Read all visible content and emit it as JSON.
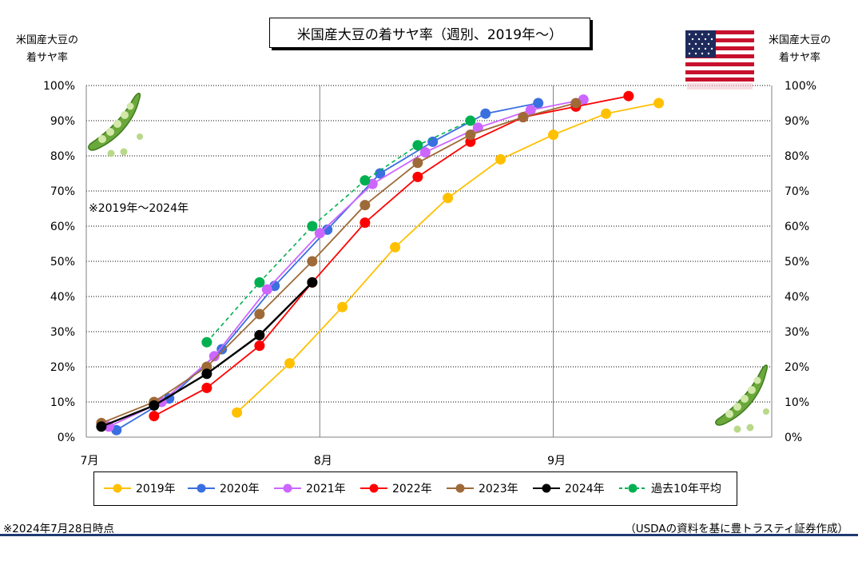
{
  "chart_data": {
    "type": "line",
    "title": "米国産大豆の着サヤ率（週別、2019年～）",
    "ylabel_left": "米国産大豆の\n着サヤ率",
    "ylabel_right": "米国産大豆の\n着サヤ率",
    "annotation": "※2019年～2024年",
    "x_ticks": [
      "7月",
      "8月",
      "9月"
    ],
    "x_range": [
      "2024-07-01",
      "2024-09-30"
    ],
    "ylim": [
      0,
      100
    ],
    "y_ticks": [
      "0%",
      "10%",
      "20%",
      "30%",
      "40%",
      "50%",
      "60%",
      "70%",
      "80%",
      "90%",
      "100%"
    ],
    "grid": true,
    "legend_position": "bottom",
    "series": [
      {
        "name": "2019年",
        "color": "#ffc000",
        "dashed": false,
        "x": [
          "2024-07-21",
          "2024-07-28",
          "2024-08-04",
          "2024-08-11",
          "2024-08-18",
          "2024-08-25",
          "2024-09-01",
          "2024-09-08",
          "2024-09-15"
        ],
        "y": [
          7,
          21,
          37,
          54,
          68,
          79,
          86,
          92,
          95
        ]
      },
      {
        "name": "2020年",
        "color": "#3a6fe0",
        "dashed": false,
        "x": [
          "2024-07-05",
          "2024-07-12",
          "2024-07-19",
          "2024-07-26",
          "2024-08-02",
          "2024-08-09",
          "2024-08-16",
          "2024-08-23",
          "2024-08-30"
        ],
        "y": [
          2,
          11,
          25,
          43,
          59,
          75,
          84,
          92,
          95
        ]
      },
      {
        "name": "2021年",
        "color": "#cc66ff",
        "dashed": false,
        "x": [
          "2024-07-04",
          "2024-07-11",
          "2024-07-18",
          "2024-07-25",
          "2024-08-01",
          "2024-08-08",
          "2024-08-15",
          "2024-08-22",
          "2024-08-29",
          "2024-09-05"
        ],
        "y": [
          3,
          10,
          23,
          42,
          58,
          72,
          81,
          88,
          93,
          96
        ]
      },
      {
        "name": "2022年",
        "color": "#ff0000",
        "dashed": false,
        "x": [
          "2024-07-10",
          "2024-07-17",
          "2024-07-24",
          "2024-07-31",
          "2024-08-07",
          "2024-08-14",
          "2024-08-21",
          "2024-08-28",
          "2024-09-04",
          "2024-09-11"
        ],
        "y": [
          6,
          14,
          26,
          44,
          61,
          74,
          84,
          91,
          94,
          97
        ]
      },
      {
        "name": "2023年",
        "color": "#9e6a38",
        "dashed": false,
        "x": [
          "2024-07-03",
          "2024-07-10",
          "2024-07-17",
          "2024-07-24",
          "2024-07-31",
          "2024-08-07",
          "2024-08-14",
          "2024-08-21",
          "2024-08-28",
          "2024-09-04"
        ],
        "y": [
          4,
          10,
          20,
          35,
          50,
          66,
          78,
          86,
          91,
          95
        ]
      },
      {
        "name": "2024年",
        "color": "#000000",
        "dashed": false,
        "x": [
          "2024-07-03",
          "2024-07-10",
          "2024-07-17",
          "2024-07-24",
          "2024-07-31"
        ],
        "y": [
          3,
          9,
          18,
          29,
          44
        ]
      },
      {
        "name": "過去10年平均",
        "color": "#00b050",
        "dashed": true,
        "x": [
          "2024-07-17",
          "2024-07-24",
          "2024-07-31",
          "2024-08-07",
          "2024-08-14",
          "2024-08-21"
        ],
        "y": [
          27,
          44,
          60,
          73,
          83,
          90
        ]
      }
    ]
  },
  "notes": {
    "as_of": "※2024年7月28日時点",
    "source": "（USDAの資料を基に豊トラスティ証券作成）"
  },
  "decor": {
    "flag": "us-flag-icon",
    "pea": "pea-pod-icon"
  }
}
